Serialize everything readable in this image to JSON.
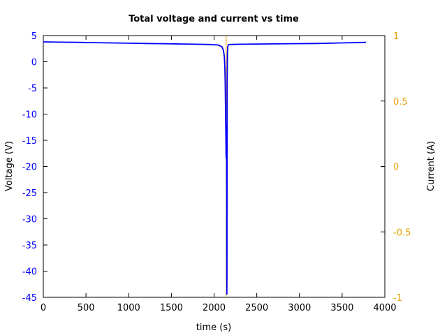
{
  "chart_data": {
    "type": "line",
    "title": "Total voltage and current vs time",
    "xlabel": "time (s)",
    "ylabel": "Voltage (V)",
    "y2label": "Current (A)",
    "xlim": [
      0,
      4000
    ],
    "ylim": [
      -45,
      5
    ],
    "y2lim": [
      -1,
      1
    ],
    "x_ticks": [
      "0",
      "500",
      "1000",
      "1500",
      "2000",
      "2500",
      "3000",
      "3500",
      "4000"
    ],
    "y_ticks": [
      "5",
      "0",
      "-5",
      "-10",
      "-15",
      "-20",
      "-25",
      "-30",
      "-35",
      "-40",
      "-45"
    ],
    "y2_ticks": [
      "1",
      "0.5",
      "0",
      "-0.5",
      "-1"
    ],
    "grid": false,
    "legend": "none",
    "colors": {
      "voltage": "#0000ff",
      "current": "#e6a000",
      "frame": "#000000"
    },
    "series": [
      {
        "axis": "left",
        "x": [
          0,
          200,
          400,
          600,
          800,
          1000,
          1200,
          1400,
          1600,
          1800,
          1950,
          2050,
          2090,
          2110,
          2120,
          2126,
          2130,
          2134,
          2138,
          2141,
          2143,
          2146,
          2148,
          2149,
          2150,
          2151,
          2152,
          2153,
          2156,
          2160,
          2165,
          2180,
          2300,
          2600,
          2900,
          3200,
          3500,
          3780
        ],
        "y": [
          3.8,
          3.75,
          3.7,
          3.65,
          3.6,
          3.55,
          3.5,
          3.45,
          3.4,
          3.35,
          3.3,
          3.2,
          2.9,
          2.2,
          1.0,
          -1.0,
          -4.0,
          -9.0,
          -14.0,
          -18.0,
          -18.5,
          -12.0,
          -25.0,
          -35.0,
          -44.4,
          -40.0,
          -20.0,
          -5.0,
          1.5,
          2.8,
          3.2,
          3.3,
          3.35,
          3.4,
          3.45,
          3.5,
          3.6,
          3.7
        ]
      },
      {
        "axis": "right",
        "x": [
          2142,
          2142
        ],
        "y": [
          -1,
          1
        ]
      }
    ]
  }
}
